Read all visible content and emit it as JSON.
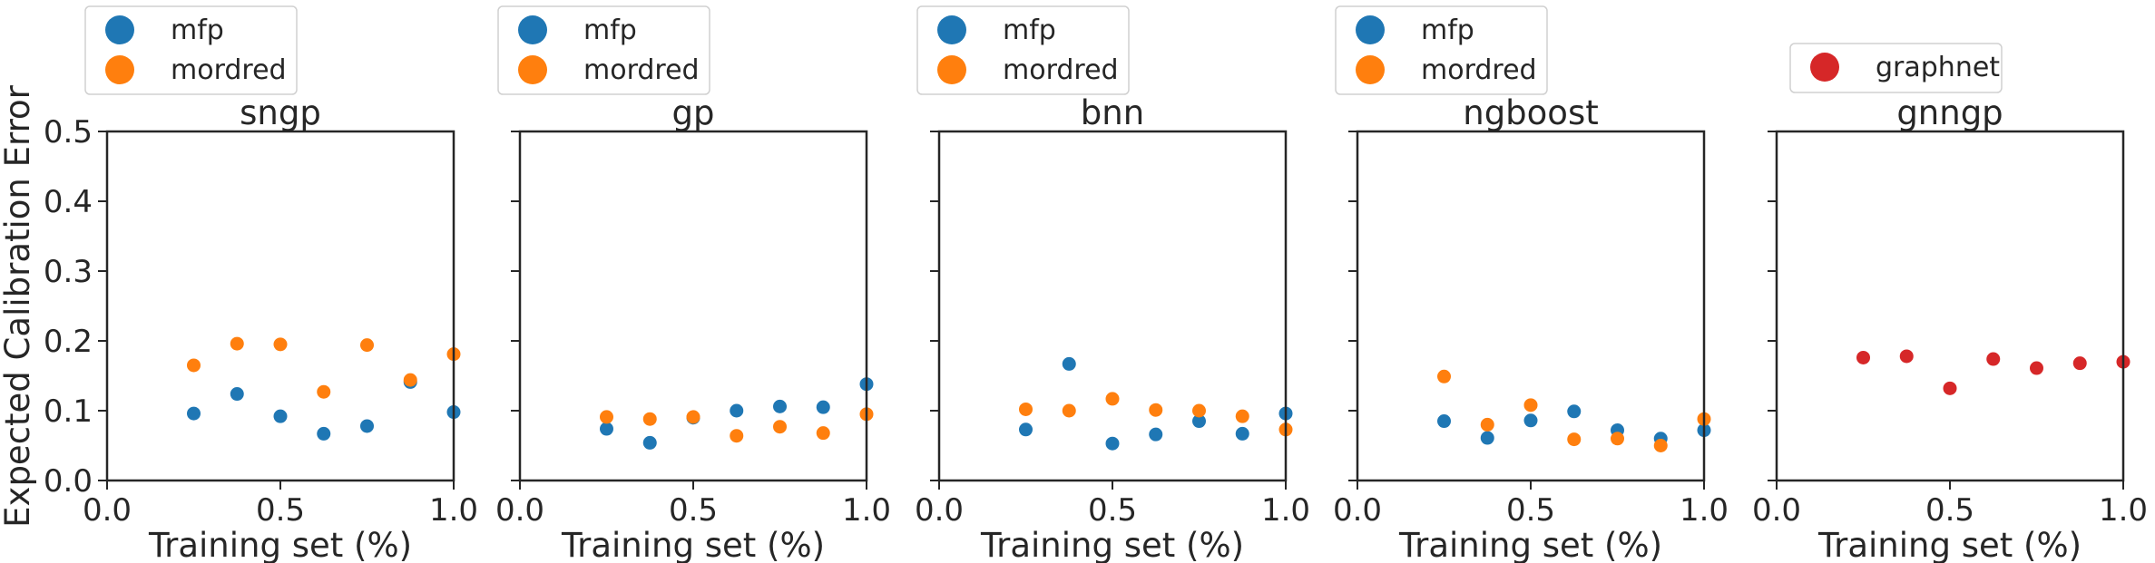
{
  "figure": {
    "ylabel": "Expected Calibration Error",
    "colors": {
      "mfp": "#1f77b4",
      "mordred": "#ff7f0e",
      "graphnet": "#d62728"
    }
  },
  "chart_data": [
    {
      "type": "scatter",
      "title": "sngp",
      "xlabel": "Training set (%)",
      "ylabel": "Expected Calibration Error",
      "xlim": [
        0.0,
        1.0
      ],
      "ylim": [
        0.0,
        0.5
      ],
      "xticks": [
        "0.0",
        "0.5",
        "1.0"
      ],
      "yticks": [
        "0.0",
        "0.1",
        "0.2",
        "0.3",
        "0.4",
        "0.5"
      ],
      "legend": "top",
      "series": [
        {
          "name": "mfp",
          "color": "#1f77b4",
          "x": [
            0.25,
            0.375,
            0.5,
            0.625,
            0.75,
            0.875,
            1.0
          ],
          "y": [
            0.096,
            0.124,
            0.092,
            0.067,
            0.078,
            0.141,
            0.098
          ]
        },
        {
          "name": "mordred",
          "color": "#ff7f0e",
          "x": [
            0.25,
            0.375,
            0.5,
            0.625,
            0.75,
            0.875,
            1.0
          ],
          "y": [
            0.165,
            0.196,
            0.195,
            0.127,
            0.194,
            0.144,
            0.181
          ]
        }
      ]
    },
    {
      "type": "scatter",
      "title": "gp",
      "xlabel": "Training set (%)",
      "xlim": [
        0.0,
        1.0
      ],
      "ylim": [
        0.0,
        0.5
      ],
      "xticks": [
        "0.0",
        "0.5",
        "1.0"
      ],
      "legend": "top",
      "series": [
        {
          "name": "mfp",
          "color": "#1f77b4",
          "x": [
            0.25,
            0.375,
            0.5,
            0.625,
            0.75,
            0.875,
            1.0
          ],
          "y": [
            0.074,
            0.054,
            0.09,
            0.1,
            0.106,
            0.105,
            0.138
          ]
        },
        {
          "name": "mordred",
          "color": "#ff7f0e",
          "x": [
            0.25,
            0.375,
            0.5,
            0.625,
            0.75,
            0.875,
            1.0
          ],
          "y": [
            0.091,
            0.088,
            0.091,
            0.064,
            0.077,
            0.068,
            0.095
          ]
        }
      ]
    },
    {
      "type": "scatter",
      "title": "bnn",
      "xlabel": "Training set (%)",
      "xlim": [
        0.0,
        1.0
      ],
      "ylim": [
        0.0,
        0.5
      ],
      "xticks": [
        "0.0",
        "0.5",
        "1.0"
      ],
      "legend": "top",
      "series": [
        {
          "name": "mfp",
          "color": "#1f77b4",
          "x": [
            0.25,
            0.375,
            0.5,
            0.625,
            0.75,
            0.875,
            1.0
          ],
          "y": [
            0.073,
            0.167,
            0.053,
            0.066,
            0.085,
            0.067,
            0.096
          ]
        },
        {
          "name": "mordred",
          "color": "#ff7f0e",
          "x": [
            0.25,
            0.375,
            0.5,
            0.625,
            0.75,
            0.875,
            1.0
          ],
          "y": [
            0.102,
            0.1,
            0.117,
            0.101,
            0.1,
            0.092,
            0.073
          ]
        }
      ]
    },
    {
      "type": "scatter",
      "title": "ngboost",
      "xlabel": "Training set (%)",
      "xlim": [
        0.0,
        1.0
      ],
      "ylim": [
        0.0,
        0.5
      ],
      "xticks": [
        "0.0",
        "0.5",
        "1.0"
      ],
      "legend": "top",
      "series": [
        {
          "name": "mfp",
          "color": "#1f77b4",
          "x": [
            0.25,
            0.375,
            0.5,
            0.625,
            0.75,
            0.875,
            1.0
          ],
          "y": [
            0.085,
            0.061,
            0.086,
            0.099,
            0.072,
            0.06,
            0.072
          ]
        },
        {
          "name": "mordred",
          "color": "#ff7f0e",
          "x": [
            0.25,
            0.375,
            0.5,
            0.625,
            0.75,
            0.875,
            1.0
          ],
          "y": [
            0.149,
            0.08,
            0.108,
            0.059,
            0.06,
            0.05,
            0.088
          ]
        }
      ]
    },
    {
      "type": "scatter",
      "title": "gnngp",
      "xlabel": "Training set (%)",
      "xlim": [
        0.0,
        1.0
      ],
      "ylim": [
        0.0,
        0.5
      ],
      "xticks": [
        "0.0",
        "0.5",
        "1.0"
      ],
      "legend": "top",
      "series": [
        {
          "name": "graphnet",
          "color": "#d62728",
          "x": [
            0.25,
            0.375,
            0.5,
            0.625,
            0.75,
            0.875,
            1.0
          ],
          "y": [
            0.176,
            0.178,
            0.132,
            0.174,
            0.161,
            0.168,
            0.17
          ]
        }
      ]
    }
  ]
}
